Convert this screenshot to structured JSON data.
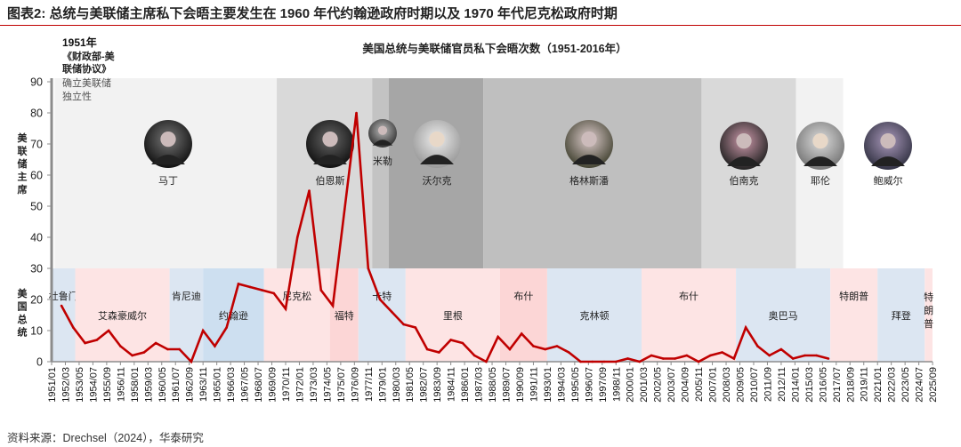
{
  "figure_title": "图表2:   总统与美联储主席私下会晤主要发生在 1960 年代约翰逊政府时期以及 1970 年代尼克松政府时期",
  "source": "资料来源：Drechsel（2024），华泰研究",
  "colors": {
    "line": "#c00000",
    "president_blue": "#dce6f2",
    "president_blue_dark": "#cddff0",
    "president_pink": "#fde4e4",
    "president_pink_dark": "#fcd6d6"
  },
  "annotation": {
    "line1": "1951年",
    "line2": "《财政部-美",
    "line3": "联储协议》",
    "line4": "确立美联储",
    "line5": "独立性"
  },
  "chart_data": {
    "type": "line",
    "title": "美国总统与美联储官员私下会晤次数（1951-2016年）",
    "ylabel_top": "美联储主席",
    "ylabel_bottom": "美国总统",
    "ylim": [
      0,
      90
    ],
    "yticks": [
      "0",
      "10",
      "20",
      "30",
      "40",
      "50",
      "60",
      "70",
      "80",
      "90"
    ],
    "grid": false,
    "x_tick_labels": [
      "1951/01",
      "1952/03",
      "1953/05",
      "1954/07",
      "1955/09",
      "1956/11",
      "1958/01",
      "1959/03",
      "1960/05",
      "1961/07",
      "1962/09",
      "1963/11",
      "1965/01",
      "1966/03",
      "1967/05",
      "1968/07",
      "1969/09",
      "1970/11",
      "1972/01",
      "1973/03",
      "1974/05",
      "1975/07",
      "1976/09",
      "1977/11",
      "1979/01",
      "1980/03",
      "1981/05",
      "1982/07",
      "1983/09",
      "1984/11",
      "1986/01",
      "1987/03",
      "1988/05",
      "1989/07",
      "1990/09",
      "1991/11",
      "1993/01",
      "1994/03",
      "1995/05",
      "1996/07",
      "1997/09",
      "1998/11",
      "2000/01",
      "2001/03",
      "2002/05",
      "2003/07",
      "2004/09",
      "2005/11",
      "2007/01",
      "2008/03",
      "2009/05",
      "2010/07",
      "2011/09",
      "2012/11",
      "2014/01",
      "2015/03",
      "2016/05",
      "2017/07",
      "2018/09",
      "2019/11",
      "2021/01",
      "2022/03",
      "2023/05",
      "2024/07",
      "2025/09"
    ],
    "years": [
      1951,
      1952,
      1953,
      1954,
      1955,
      1956,
      1957,
      1958,
      1959,
      1960,
      1961,
      1962,
      1963,
      1964,
      1965,
      1966,
      1967,
      1968,
      1969,
      1970,
      1971,
      1972,
      1973,
      1974,
      1975,
      1976,
      1977,
      1978,
      1979,
      1980,
      1981,
      1982,
      1983,
      1984,
      1985,
      1986,
      1987,
      1988,
      1989,
      1990,
      1991,
      1992,
      1993,
      1994,
      1995,
      1996,
      1997,
      1998,
      1999,
      2000,
      2001,
      2002,
      2003,
      2004,
      2005,
      2006,
      2007,
      2008,
      2009,
      2010,
      2011,
      2012,
      2013,
      2014,
      2015,
      2016
    ],
    "values": [
      18,
      11,
      6,
      7,
      10,
      5,
      2,
      3,
      6,
      4,
      4,
      0,
      10,
      5,
      11,
      25,
      24,
      23,
      22,
      17,
      40,
      55,
      23,
      18,
      49,
      80,
      30,
      20,
      16,
      12,
      11,
      4,
      3,
      7,
      6,
      2,
      0,
      8,
      4,
      9,
      5,
      4,
      5,
      3,
      0,
      0,
      0,
      0,
      1,
      0,
      2,
      1,
      1,
      2,
      0,
      2,
      3,
      1,
      11,
      5,
      2,
      4,
      1,
      2,
      2,
      1
    ],
    "fed_chairs": [
      {
        "name": "马丁",
        "start": "1951/04",
        "end": "1970/02",
        "color": "#f2f2f2"
      },
      {
        "name": "伯恩斯",
        "start": "1970/02",
        "end": "1978/03",
        "color": "#d9d9d9"
      },
      {
        "name": "米勒",
        "start": "1978/03",
        "end": "1979/08",
        "color": "#c3c3c3"
      },
      {
        "name": "沃尔克",
        "start": "1979/08",
        "end": "1987/08",
        "color": "#a6a6a6"
      },
      {
        "name": "格林斯潘",
        "start": "1987/08",
        "end": "2006/02",
        "color": "#bfbfbf"
      },
      {
        "name": "伯南克",
        "start": "2006/02",
        "end": "2014/02",
        "color": "#d9d9d9"
      },
      {
        "name": "耶伦",
        "start": "2014/02",
        "end": "2018/02",
        "color": "#f2f2f2"
      },
      {
        "name": "鲍威尔",
        "start": "2018/02",
        "end": "2025/09",
        "color": "#ffffff"
      }
    ],
    "presidents": [
      {
        "name": "杜鲁门",
        "start": "1951/01",
        "end": "1953/01",
        "color": "#dce6f2"
      },
      {
        "name": "艾森豪威尔",
        "start": "1953/01",
        "end": "1961/01",
        "color": "#fde4e4"
      },
      {
        "name": "肯尼迪",
        "start": "1961/01",
        "end": "1963/11",
        "color": "#dce6f2"
      },
      {
        "name": "约翰逊",
        "start": "1963/11",
        "end": "1969/01",
        "color": "#cddff0"
      },
      {
        "name": "尼克松",
        "start": "1969/01",
        "end": "1974/08",
        "color": "#fde4e4"
      },
      {
        "name": "福特",
        "start": "1974/08",
        "end": "1977/01",
        "color": "#fcd6d6"
      },
      {
        "name": "卡特",
        "start": "1977/01",
        "end": "1981/01",
        "color": "#dce6f2"
      },
      {
        "name": "里根",
        "start": "1981/01",
        "end": "1989/01",
        "color": "#fde4e4"
      },
      {
        "name": "布什",
        "start": "1989/01",
        "end": "1993/01",
        "color": "#fcd6d6"
      },
      {
        "name": "克林顿",
        "start": "1993/01",
        "end": "2001/01",
        "color": "#dce6f2"
      },
      {
        "name": "布什",
        "start": "2001/01",
        "end": "2009/01",
        "color": "#fde4e4"
      },
      {
        "name": "奥巴马",
        "start": "2009/01",
        "end": "2017/01",
        "color": "#dce6f2"
      },
      {
        "name": "特朗普",
        "start": "2017/01",
        "end": "2021/01",
        "color": "#fde4e4"
      },
      {
        "name": "拜登",
        "start": "2021/01",
        "end": "2025/01",
        "color": "#dce6f2"
      },
      {
        "name": "特朗普",
        "start": "2025/01",
        "end": "2025/09",
        "color": "#fde4e4"
      }
    ]
  }
}
